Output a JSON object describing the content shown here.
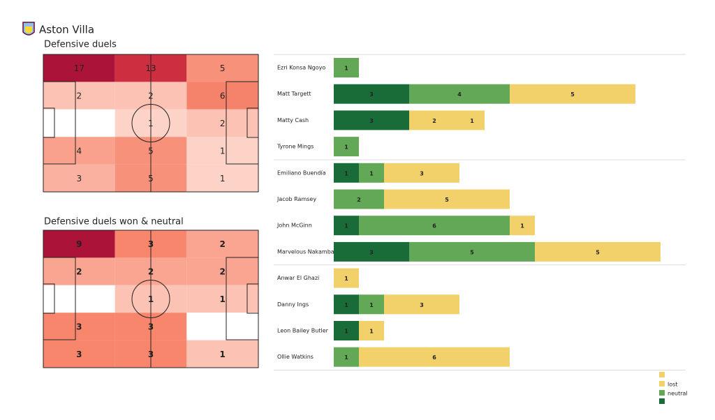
{
  "title": "Aston Villa",
  "chart_data": [
    {
      "type": "heatmap",
      "title": "Defensive duels",
      "values": [
        [
          17,
          13,
          5
        ],
        [
          2,
          2,
          6
        ],
        [
          null,
          1,
          2
        ],
        [
          4,
          5,
          1
        ],
        [
          3,
          5,
          1
        ]
      ],
      "colors": [
        "#fee2da",
        "#f7866c",
        "#dc3a44",
        "#ab1438"
      ],
      "bold": false
    },
    {
      "type": "heatmap",
      "title": "Defensive duels won & neutral",
      "values": [
        [
          9,
          3,
          2
        ],
        [
          2,
          2,
          2
        ],
        [
          null,
          1,
          1
        ],
        [
          3,
          3,
          null
        ],
        [
          3,
          3,
          1
        ]
      ],
      "colors": [
        "#fee2da",
        "#f7866c",
        "#dc3a44",
        "#ab1438"
      ],
      "bold": true
    },
    {
      "type": "bar",
      "orientation": "horizontal",
      "stacked": true,
      "categories": [
        "Ezri Konsa Ngoyo",
        "Matt Targett",
        "Matty Cash",
        "Tyrone Mings",
        "Emiliano Buendía",
        "Jacob Ramsey",
        "John McGinn",
        "Marvelous Nakamba",
        "Anwar El Ghazi",
        "Danny Ings",
        "Leon Bailey Butler",
        "Ollie Watkins"
      ],
      "series": [
        {
          "color": "#196b38",
          "values": [
            null,
            3,
            3,
            null,
            1,
            null,
            1,
            3,
            null,
            1,
            1,
            null
          ]
        },
        {
          "name": "neutral",
          "color": "#63a857",
          "values": [
            1,
            4,
            null,
            1,
            1,
            2,
            6,
            5,
            null,
            1,
            null,
            1
          ]
        },
        {
          "name": "lost",
          "color": "#f2d16b",
          "values": [
            null,
            5,
            2,
            null,
            3,
            5,
            1,
            5,
            1,
            3,
            1,
            6
          ]
        },
        {
          "color": "#f2d16b",
          "values": [
            null,
            null,
            1,
            null,
            null,
            null,
            null,
            null,
            null,
            null,
            null,
            null
          ]
        }
      ]
    }
  ]
}
